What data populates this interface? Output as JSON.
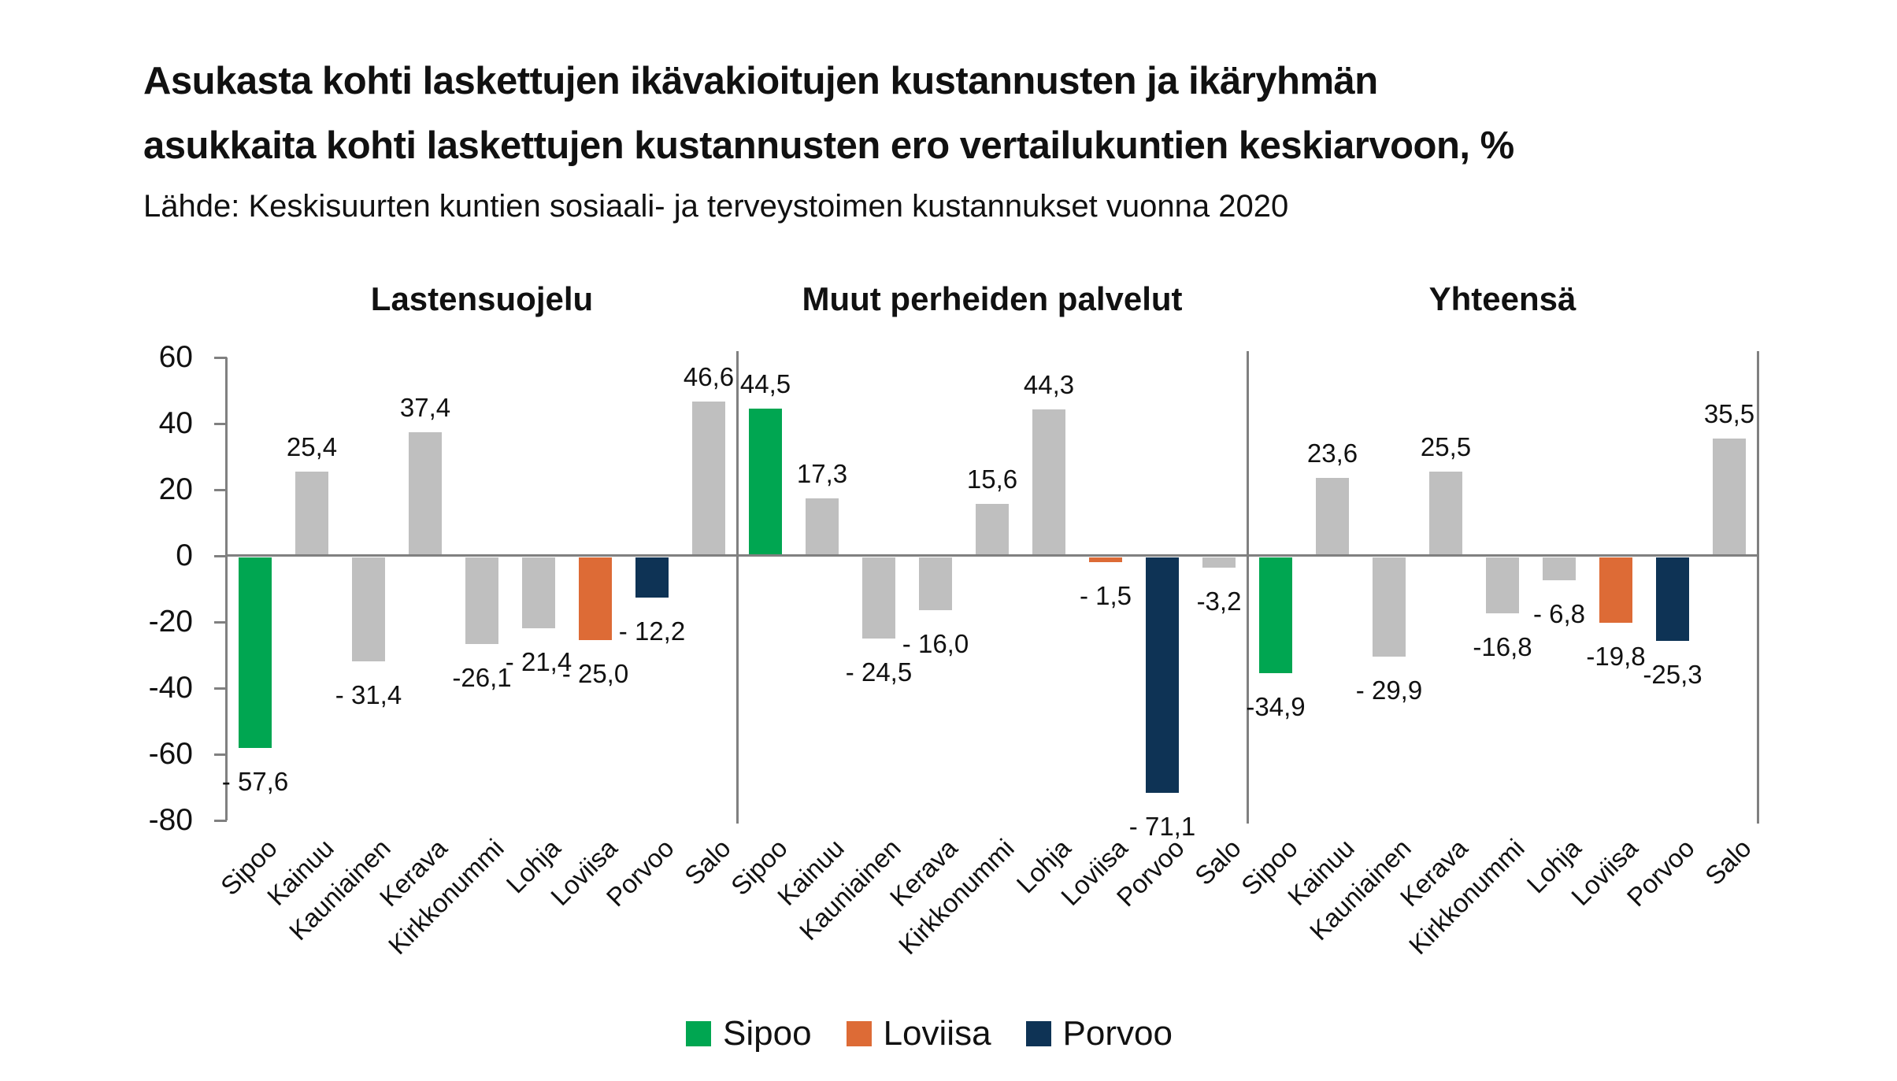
{
  "title": "Asukasta kohti laskettujen ikävakioitujen kustannusten ja ikäryhmän\nasukkaita kohti laskettujen kustannusten ero vertailukuntien keskiarvoon, %",
  "source": "Lähde: Keskisuurten kuntien sosiaali- ja terveystoimen kustannukset vuonna 2020",
  "colors": {
    "default_bar": "#BFBFBF",
    "axis_line": "#808080",
    "text": "#111111",
    "highlight": {
      "Sipoo": "#00A651",
      "Loviisa": "#DD6B36",
      "Porvoo": "#0E3355"
    }
  },
  "legend": [
    {
      "label": "Sipoo",
      "color": "#00A651"
    },
    {
      "label": "Loviisa",
      "color": "#DD6B36"
    },
    {
      "label": "Porvoo",
      "color": "#0E3355"
    }
  ],
  "chart_data": {
    "type": "bar",
    "categories": [
      "Sipoo",
      "Kainuu",
      "Kauniainen",
      "Kerava",
      "Kirkkonummi",
      "Lohja",
      "Loviisa",
      "Porvoo",
      "Salo"
    ],
    "groups": [
      {
        "title": "Lastensuojelu",
        "values": [
          -57.6,
          25.4,
          -31.4,
          37.4,
          -26.1,
          -21.4,
          -25.0,
          -12.2,
          46.6
        ],
        "labels": [
          "- 57,6",
          "25,4",
          "- 31,4",
          "37,4",
          "-26,1",
          "- 21,4",
          "- 25,0",
          "- 12,2",
          "46,6"
        ]
      },
      {
        "title": "Muut perheiden palvelut",
        "values": [
          44.5,
          17.3,
          -24.5,
          -16.0,
          15.6,
          44.3,
          -1.5,
          -71.1,
          -3.2
        ],
        "labels": [
          "44,5",
          "17,3",
          "- 24,5",
          "- 16,0",
          "15,6",
          "44,3",
          "- 1,5",
          "- 71,1",
          "-3,2"
        ]
      },
      {
        "title": "Yhteensä",
        "values": [
          -34.9,
          23.6,
          -29.9,
          25.5,
          -16.8,
          -6.8,
          -19.8,
          -25.3,
          35.5
        ],
        "labels": [
          "-34,9",
          "23,6",
          "- 29,9",
          "25,5",
          "-16,8",
          "- 6,8",
          "-19,8",
          "-25,3",
          "35,5"
        ]
      }
    ],
    "ylim": [
      -80,
      60
    ],
    "yticks": [
      60,
      40,
      20,
      0,
      -20,
      -40,
      -60,
      -80
    ],
    "grid": false,
    "legend_position": "bottom",
    "xlabel": "",
    "ylabel": ""
  }
}
